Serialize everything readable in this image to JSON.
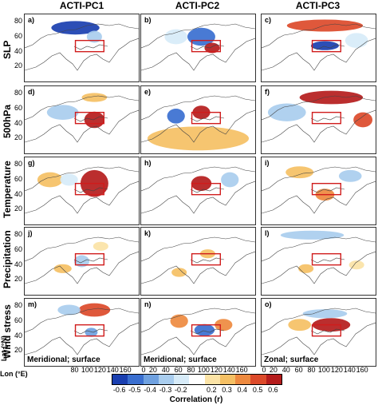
{
  "columns": [
    "ACTI-PC1",
    "ACTI-PC2",
    "ACTI-PC3"
  ],
  "rows": [
    "SLP",
    "500hPa",
    "Temperature",
    "Precipitation",
    "Wind stress"
  ],
  "panels": [
    {
      "label": "a)",
      "note": ""
    },
    {
      "label": "b)",
      "note": ""
    },
    {
      "label": "c)",
      "note": ""
    },
    {
      "label": "d)",
      "note": ""
    },
    {
      "label": "e)",
      "note": ""
    },
    {
      "label": "f)",
      "note": ""
    },
    {
      "label": "g)",
      "note": ""
    },
    {
      "label": "h)",
      "note": ""
    },
    {
      "label": "i)",
      "note": ""
    },
    {
      "label": "j)",
      "note": ""
    },
    {
      "label": "k)",
      "note": ""
    },
    {
      "label": "l)",
      "note": ""
    },
    {
      "label": "m)",
      "note": "Meridional; surface"
    },
    {
      "label": "n)",
      "note": "Meridional; surface"
    },
    {
      "label": "o)",
      "note": "Zonal; surface"
    }
  ],
  "lat_axis_label": "Lat (°N)",
  "lon_axis_label": "Lon (°E)",
  "colors": {
    "neg": [
      "#1a3fb0",
      "#3a6fd0",
      "#6fa1e0",
      "#a9cdee",
      "#d7ebf8"
    ],
    "pos": [
      "#fbe3a6",
      "#f5c064",
      "#ee8a3f",
      "#dc4a2a",
      "#b51c1c"
    ],
    "region_box": "#d01c1c",
    "coast": "#444444"
  },
  "chart_data": {
    "type": "heatmap",
    "title": "",
    "layout": "5 rows x 3 columns of correlation maps",
    "columns": [
      "ACTI-PC1",
      "ACTI-PC2",
      "ACTI-PC3"
    ],
    "rows": [
      "SLP",
      "500hPa",
      "Temperature",
      "Precipitation",
      "Wind stress"
    ],
    "xlabel": "Lon (°E)",
    "ylabel": "Lat (°N)",
    "xlim": [
      0,
      180
    ],
    "ylim": [
      0,
      90
    ],
    "lat_ticks": [
      20,
      40,
      60,
      80
    ],
    "lon_ticks_first_panel": [
      "80",
      "100",
      "120",
      "140",
      "160"
    ],
    "lon_ticks_other_panels": [
      "0",
      "20",
      "40",
      "60",
      "80",
      "100",
      "120",
      "140",
      "160"
    ],
    "region_box": {
      "lon": [
        80,
        125
      ],
      "lat": [
        40,
        55
      ]
    },
    "colorbar": {
      "label": "Correlation (r)",
      "ticks": [
        "-0.6",
        "-0.5",
        "-0.4",
        "-0.3",
        "-0.2",
        "0.2",
        "0.3",
        "0.4",
        "0.5",
        "0.6"
      ]
    },
    "anomalies": [
      [
        [
          {
            "lon": 80,
            "lat": 72,
            "rx": 38,
            "ry": 9,
            "r": -0.6
          },
          {
            "lon": 110,
            "lat": 60,
            "rx": 12,
            "ry": 8,
            "r": -0.3
          }
        ],
        [
          {
            "lon": 95,
            "lat": 60,
            "rx": 22,
            "ry": 12,
            "r": -0.5
          },
          {
            "lon": 112,
            "lat": 45,
            "rx": 12,
            "ry": 7,
            "r": 0.6
          },
          {
            "lon": 55,
            "lat": 60,
            "rx": 18,
            "ry": 10,
            "r": -0.2
          }
        ],
        [
          {
            "lon": 100,
            "lat": 75,
            "rx": 60,
            "ry": 8,
            "r": 0.5
          },
          {
            "lon": 100,
            "lat": 48,
            "rx": 22,
            "ry": 6,
            "r": -0.6
          },
          {
            "lon": 150,
            "lat": 55,
            "rx": 18,
            "ry": 10,
            "r": -0.2
          }
        ]
      ],
      [
        [
          {
            "lon": 110,
            "lat": 45,
            "rx": 16,
            "ry": 11,
            "r": 0.6
          },
          {
            "lon": 60,
            "lat": 55,
            "rx": 25,
            "ry": 10,
            "r": -0.3
          },
          {
            "lon": 110,
            "lat": 75,
            "rx": 20,
            "ry": 6,
            "r": 0.3
          }
        ],
        [
          {
            "lon": 95,
            "lat": 55,
            "rx": 14,
            "ry": 9,
            "r": 0.6
          },
          {
            "lon": 55,
            "lat": 50,
            "rx": 14,
            "ry": 10,
            "r": -0.5
          },
          {
            "lon": 90,
            "lat": 20,
            "rx": 80,
            "ry": 16,
            "r": 0.3
          }
        ],
        [
          {
            "lon": 110,
            "lat": 75,
            "rx": 50,
            "ry": 9,
            "r": 0.6
          },
          {
            "lon": 40,
            "lat": 55,
            "rx": 30,
            "ry": 12,
            "r": -0.3
          },
          {
            "lon": 160,
            "lat": 45,
            "rx": 15,
            "ry": 10,
            "r": 0.5
          }
        ]
      ],
      [
        [
          {
            "lon": 110,
            "lat": 55,
            "rx": 22,
            "ry": 18,
            "r": 0.6
          },
          {
            "lon": 40,
            "lat": 60,
            "rx": 20,
            "ry": 10,
            "r": 0.3
          },
          {
            "lon": 70,
            "lat": 60,
            "rx": 14,
            "ry": 8,
            "r": -0.2
          }
        ],
        [
          {
            "lon": 95,
            "lat": 55,
            "rx": 16,
            "ry": 10,
            "r": 0.6
          },
          {
            "lon": 140,
            "lat": 60,
            "rx": 14,
            "ry": 10,
            "r": -0.3
          }
        ],
        [
          {
            "lon": 100,
            "lat": 40,
            "rx": 15,
            "ry": 8,
            "r": 0.4
          },
          {
            "lon": 60,
            "lat": 70,
            "rx": 22,
            "ry": 8,
            "r": 0.3
          },
          {
            "lon": 140,
            "lat": 65,
            "rx": 18,
            "ry": 8,
            "r": -0.3
          }
        ]
      ],
      [
        [
          {
            "lon": 90,
            "lat": 45,
            "rx": 12,
            "ry": 8,
            "r": -0.3
          },
          {
            "lon": 60,
            "lat": 35,
            "rx": 14,
            "ry": 6,
            "r": 0.3
          },
          {
            "lon": 120,
            "lat": 65,
            "rx": 12,
            "ry": 6,
            "r": 0.2
          }
        ],
        [
          {
            "lon": 105,
            "lat": 55,
            "rx": 12,
            "ry": 6,
            "r": 0.3
          },
          {
            "lon": 60,
            "lat": 30,
            "rx": 12,
            "ry": 6,
            "r": 0.3
          }
        ],
        [
          {
            "lon": 80,
            "lat": 80,
            "rx": 50,
            "ry": 6,
            "r": -0.3
          },
          {
            "lon": 70,
            "lat": 35,
            "rx": 12,
            "ry": 6,
            "r": 0.3
          },
          {
            "lon": 150,
            "lat": 40,
            "rx": 12,
            "ry": 6,
            "r": 0.2
          }
        ]
      ],
      [
        [
          {
            "lon": 110,
            "lat": 75,
            "rx": 25,
            "ry": 9,
            "r": 0.5
          },
          {
            "lon": 70,
            "lat": 75,
            "rx": 18,
            "ry": 7,
            "r": -0.3
          },
          {
            "lon": 105,
            "lat": 45,
            "rx": 10,
            "ry": 6,
            "r": -0.4
          }
        ],
        [
          {
            "lon": 100,
            "lat": 48,
            "rx": 16,
            "ry": 8,
            "r": -0.5
          },
          {
            "lon": 60,
            "lat": 60,
            "rx": 14,
            "ry": 9,
            "r": 0.4
          },
          {
            "lon": 130,
            "lat": 55,
            "rx": 14,
            "ry": 8,
            "r": 0.4
          }
        ],
        [
          {
            "lon": 110,
            "lat": 55,
            "rx": 30,
            "ry": 9,
            "r": 0.6
          },
          {
            "lon": 100,
            "lat": 70,
            "rx": 35,
            "ry": 6,
            "r": -0.3
          },
          {
            "lon": 60,
            "lat": 55,
            "rx": 18,
            "ry": 8,
            "r": 0.3
          }
        ]
      ]
    ]
  }
}
